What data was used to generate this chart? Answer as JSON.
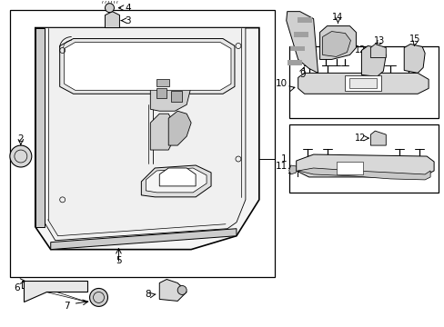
{
  "bg_color": "#ffffff",
  "line_color": "#000000",
  "text_color": "#000000",
  "figsize": [
    4.89,
    3.6
  ],
  "dpi": 100
}
